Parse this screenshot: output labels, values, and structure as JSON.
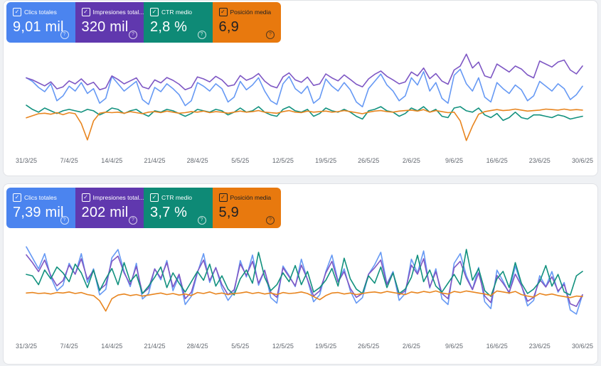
{
  "page": {
    "background": "#eff1f4",
    "panel_border": "#e0e2e6"
  },
  "icons": {
    "checkbox_glyph": "✓",
    "help_glyph": "?"
  },
  "sections": [
    {
      "cards": [
        {
          "label": "Clics totales",
          "value": "9,01 mil",
          "color": "#4b84ef",
          "text_color": "#ffffff",
          "checked": true
        },
        {
          "label": "Impresiones total...",
          "value": "320 mil",
          "color": "#6038ae",
          "text_color": "#ffffff",
          "checked": true
        },
        {
          "label": "CTR medio",
          "value": "2,8 %",
          "color": "#0e8a76",
          "text_color": "#ffffff",
          "checked": true
        },
        {
          "label": "Posición media",
          "value": "6,9",
          "color": "#e8790e",
          "text_color": "#202124",
          "checked": true
        }
      ]
    },
    {
      "cards": [
        {
          "label": "Clics totales",
          "value": "7,39 mil",
          "color": "#4b84ef",
          "text_color": "#ffffff",
          "checked": true
        },
        {
          "label": "Impresiones total...",
          "value": "202 mil",
          "color": "#6038ae",
          "text_color": "#ffffff",
          "checked": true
        },
        {
          "label": "CTR medio",
          "value": "3,7 %",
          "color": "#0e8a76",
          "text_color": "#ffffff",
          "checked": true
        },
        {
          "label": "Posición media",
          "value": "5,9",
          "color": "#e8790e",
          "text_color": "#202124",
          "checked": true
        }
      ]
    }
  ],
  "chart_data": [
    {
      "type": "line",
      "title": "Rendimiento (periodo superior)",
      "days": 92,
      "x_tick_labels": [
        "31/3/25",
        "7/4/25",
        "14/4/25",
        "21/4/25",
        "28/4/25",
        "5/5/25",
        "12/5/25",
        "19/5/25",
        "26/5/25",
        "2/6/25",
        "9/6/25",
        "16/6/25",
        "23/6/25",
        "30/6/25"
      ],
      "x_tick_indices": [
        0,
        7,
        14,
        21,
        28,
        35,
        42,
        49,
        56,
        63,
        70,
        77,
        84,
        91
      ],
      "grid": false,
      "legend": "cards-above",
      "series": [
        {
          "name": "Clics totales",
          "color": "#6699f4",
          "display_range": [
            0,
            170
          ],
          "inverted": false,
          "values": [
            118,
            112,
            102,
            95,
            108,
            80,
            88,
            104,
            96,
            110,
            92,
            100,
            76,
            84,
            120,
            108,
            96,
            104,
            112,
            82,
            74,
            102,
            95,
            108,
            100,
            90,
            72,
            80,
            110,
            104,
            96,
            108,
            100,
            78,
            86,
            112,
            98,
            106,
            118,
            96,
            80,
            74,
            108,
            120,
            100,
            92,
            104,
            76,
            84,
            116,
            104,
            96,
            110,
            98,
            78,
            70,
            100,
            112,
            124,
            106,
            96,
            80,
            88,
            118,
            106,
            128,
            96,
            110,
            84,
            76,
            122,
            132,
            108,
            96,
            118,
            86,
            78,
            110,
            100,
            92,
            106,
            98,
            80,
            88,
            112,
            104,
            96,
            108,
            100,
            82,
            90,
            104
          ]
        },
        {
          "name": "Impresiones totales",
          "color": "#7e57c4",
          "display_range": [
            0,
            5200
          ],
          "inverted": false,
          "values": [
            3600,
            3500,
            3350,
            3200,
            3400,
            3050,
            3150,
            3450,
            3300,
            3550,
            3250,
            3380,
            3000,
            3100,
            3700,
            3520,
            3300,
            3450,
            3600,
            3150,
            3050,
            3500,
            3350,
            3620,
            3480,
            3280,
            3000,
            3120,
            3650,
            3550,
            3400,
            3680,
            3500,
            3180,
            3250,
            3720,
            3480,
            3600,
            3820,
            3440,
            3200,
            3100,
            3650,
            3850,
            3500,
            3380,
            3640,
            3220,
            3300,
            3800,
            3600,
            3450,
            3750,
            3520,
            3280,
            3150,
            3550,
            3780,
            3950,
            3680,
            3500,
            3300,
            3400,
            3900,
            3700,
            4100,
            3560,
            3820,
            3440,
            3280,
            4000,
            4200,
            4800,
            4100,
            4400,
            3700,
            3600,
            4300,
            4100,
            3900,
            4200,
            4050,
            3750,
            3600,
            4450,
            4300,
            4150,
            4400,
            4500,
            4000,
            3800,
            4200
          ]
        },
        {
          "name": "CTR medio (%)",
          "color": "#12917e",
          "display_range": [
            0,
            7.5
          ],
          "inverted": false,
          "values": [
            3.2,
            2.9,
            2.7,
            3.0,
            2.8,
            2.6,
            2.8,
            2.9,
            2.8,
            2.7,
            2.9,
            2.8,
            2.5,
            2.7,
            3.0,
            2.9,
            2.6,
            2.8,
            2.9,
            2.6,
            2.4,
            2.8,
            2.7,
            2.9,
            2.8,
            2.6,
            2.4,
            2.6,
            2.9,
            2.8,
            2.7,
            2.9,
            2.8,
            2.5,
            2.7,
            3.0,
            2.7,
            2.8,
            3.1,
            2.7,
            2.5,
            2.4,
            2.9,
            3.1,
            2.8,
            2.7,
            2.9,
            2.4,
            2.6,
            3.0,
            2.8,
            2.7,
            2.9,
            2.7,
            2.4,
            2.2,
            2.8,
            2.9,
            3.1,
            2.8,
            2.7,
            2.4,
            2.6,
            3.0,
            2.8,
            3.1,
            2.7,
            2.9,
            2.4,
            2.3,
            3.0,
            3.1,
            2.8,
            2.7,
            3.0,
            2.5,
            2.3,
            2.6,
            2.1,
            2.3,
            2.7,
            2.3,
            2.2,
            2.5,
            2.5,
            2.4,
            2.3,
            2.5,
            2.4,
            2.2,
            2.3,
            2.4
          ]
        },
        {
          "name": "Posición media",
          "color": "#e8851f",
          "display_range": [
            -6,
            14
          ],
          "inverted": true,
          "values": [
            7.9,
            7.5,
            7.1,
            7.0,
            7.2,
            6.9,
            7.3,
            6.9,
            7.1,
            9.0,
            12.2,
            8.5,
            7.0,
            6.8,
            6.9,
            6.8,
            7.0,
            6.7,
            6.9,
            7.1,
            6.8,
            6.7,
            6.9,
            6.6,
            6.8,
            7.0,
            6.9,
            6.7,
            6.8,
            6.6,
            6.9,
            6.7,
            6.8,
            7.0,
            6.8,
            6.6,
            6.8,
            6.7,
            6.5,
            6.8,
            6.9,
            7.0,
            6.7,
            6.5,
            6.8,
            6.9,
            6.6,
            6.8,
            6.7,
            6.6,
            6.8,
            6.7,
            6.5,
            6.7,
            6.9,
            7.1,
            6.8,
            6.6,
            6.5,
            6.7,
            6.8,
            6.6,
            6.5,
            6.4,
            6.6,
            6.3,
            6.8,
            6.5,
            6.7,
            6.9,
            6.8,
            8.5,
            12.3,
            9.5,
            7.2,
            6.7,
            6.5,
            6.3,
            6.5,
            6.4,
            6.2,
            6.4,
            6.6,
            6.5,
            6.4,
            6.2,
            6.3,
            6.4,
            6.2,
            6.4,
            6.3,
            6.4
          ]
        }
      ]
    },
    {
      "type": "line",
      "title": "Rendimiento (periodo inferior)",
      "days": 92,
      "x_tick_labels": [
        "31/3/25",
        "7/4/25",
        "14/4/25",
        "21/4/25",
        "28/4/25",
        "5/5/25",
        "12/5/25",
        "19/5/25",
        "26/5/25",
        "2/6/25",
        "9/6/25",
        "16/6/25",
        "23/6/25",
        "30/6/25"
      ],
      "x_tick_indices": [
        0,
        7,
        14,
        21,
        28,
        35,
        42,
        49,
        56,
        63,
        70,
        77,
        84,
        91
      ],
      "grid": false,
      "legend": "cards-above",
      "series": [
        {
          "name": "Clics totales",
          "color": "#6699f4",
          "display_range": [
            0,
            150
          ],
          "inverted": false,
          "values": [
            128,
            112,
            96,
            118,
            84,
            64,
            72,
            104,
            88,
            118,
            76,
            96,
            58,
            66,
            112,
            124,
            92,
            70,
            104,
            52,
            60,
            96,
            80,
            108,
            64,
            86,
            44,
            56,
            90,
            118,
            76,
            98,
            68,
            50,
            62,
            108,
            84,
            116,
            72,
            94,
            54,
            46,
            100,
            86,
            70,
            110,
            80,
            48,
            58,
            92,
            116,
            78,
            96,
            64,
            46,
            54,
            88,
            102,
            120,
            74,
            92,
            50,
            60,
            110,
            90,
            122,
            68,
            96,
            52,
            44,
            104,
            118,
            86,
            66,
            98,
            48,
            38,
            94,
            78,
            60,
            100,
            72,
            42,
            50,
            86,
            70,
            92,
            62,
            76,
            36,
            30,
            58
          ]
        },
        {
          "name": "Impresiones totales",
          "color": "#7e57c4",
          "display_range": [
            0,
            4000
          ],
          "inverted": false,
          "values": [
            3100,
            2800,
            2450,
            2900,
            2300,
            1900,
            2100,
            2700,
            2350,
            2950,
            2150,
            2500,
            1750,
            1950,
            2850,
            3050,
            2400,
            1950,
            2650,
            1600,
            1800,
            2550,
            2200,
            2800,
            1850,
            2350,
            1400,
            1650,
            2450,
            2900,
            2100,
            2600,
            1950,
            1550,
            1750,
            2750,
            2300,
            2850,
            2000,
            2500,
            1650,
            1450,
            2600,
            2250,
            1900,
            2700,
            2150,
            1500,
            1700,
            2400,
            2850,
            2050,
            2450,
            1800,
            1450,
            1600,
            2350,
            2600,
            2900,
            1950,
            2400,
            1550,
            1700,
            2700,
            2350,
            2950,
            1850,
            2450,
            1600,
            1400,
            2600,
            2850,
            2200,
            1750,
            2400,
            1500,
            1250,
            2300,
            2000,
            1650,
            2350,
            1900,
            1300,
            1450,
            2150,
            1850,
            2250,
            1700,
            1950,
            1200,
            1100,
            1550
          ]
        },
        {
          "name": "CTR medio (%)",
          "color": "#12917e",
          "display_range": [
            0,
            7
          ],
          "inverted": false,
          "values": [
            4.1,
            4.0,
            3.4,
            4.4,
            3.8,
            4.6,
            4.2,
            3.6,
            4.8,
            4.2,
            3.2,
            4.4,
            3.0,
            3.8,
            4.5,
            3.4,
            4.9,
            3.6,
            4.1,
            2.8,
            3.3,
            3.9,
            4.6,
            3.2,
            4.2,
            3.5,
            2.9,
            3.6,
            4.3,
            3.7,
            4.8,
            3.3,
            4.0,
            3.1,
            2.7,
            3.8,
            4.4,
            3.5,
            5.6,
            3.9,
            3.0,
            3.4,
            4.2,
            3.6,
            4.7,
            3.4,
            4.3,
            2.9,
            3.2,
            3.7,
            4.5,
            3.3,
            5.2,
            3.8,
            3.1,
            2.8,
            4.0,
            3.5,
            4.6,
            3.2,
            4.2,
            2.8,
            3.1,
            3.9,
            5.4,
            3.6,
            4.4,
            3.3,
            2.9,
            3.5,
            4.1,
            3.4,
            5.8,
            3.7,
            4.5,
            3.0,
            2.6,
            3.8,
            4.3,
            3.2,
            4.9,
            3.5,
            2.8,
            3.1,
            3.6,
            4.7,
            3.3,
            4.1,
            2.9,
            2.7,
            4.0,
            4.3
          ]
        },
        {
          "name": "Posición media",
          "color": "#e8851f",
          "display_range": [
            -6,
            14
          ],
          "inverted": true,
          "values": [
            5.9,
            5.8,
            6.0,
            5.9,
            6.1,
            5.8,
            5.9,
            5.7,
            6.0,
            5.8,
            6.2,
            6.4,
            7.4,
            9.4,
            7.0,
            6.3,
            6.1,
            6.4,
            6.2,
            6.5,
            6.3,
            6.1,
            5.9,
            6.2,
            6.0,
            6.3,
            6.1,
            6.4,
            5.8,
            6.0,
            5.7,
            6.1,
            5.9,
            6.2,
            6.0,
            5.9,
            5.7,
            6.0,
            5.8,
            6.1,
            5.9,
            6.2,
            5.8,
            6.0,
            5.9,
            5.7,
            6.0,
            6.6,
            7.2,
            6.4,
            5.9,
            5.8,
            6.1,
            5.9,
            6.2,
            6.0,
            5.8,
            5.7,
            5.9,
            5.6,
            5.8,
            6.0,
            6.2,
            5.7,
            5.9,
            5.6,
            5.8,
            5.5,
            5.9,
            6.1,
            5.6,
            5.8,
            5.5,
            5.7,
            5.9,
            6.1,
            6.4,
            5.5,
            5.7,
            5.9,
            5.6,
            6.2,
            6.5,
            6.7,
            6.0,
            6.3,
            6.1,
            6.4,
            6.6,
            6.8,
            6.5,
            6.6
          ]
        }
      ]
    }
  ]
}
